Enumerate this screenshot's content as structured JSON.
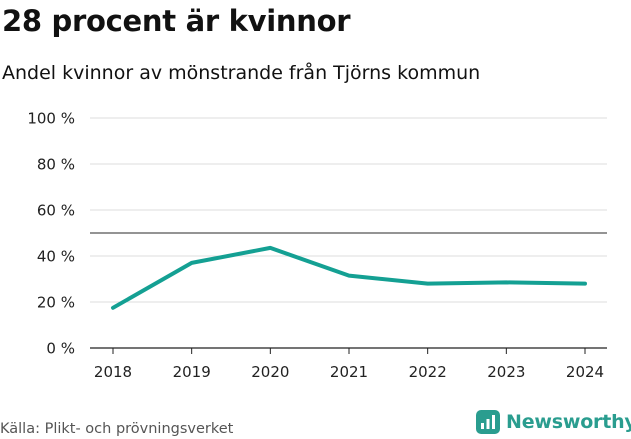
{
  "header": {
    "title": "28 procent är kvinnor",
    "subtitle": "Andel kvinnor av mönstrande från Tjörns kommun"
  },
  "footer": {
    "source": "Källa: Plikt- och prövningsverket",
    "brand": "Newsworthy"
  },
  "colors": {
    "line": "#14a093",
    "grid": "#dddddd",
    "reference": "#555555",
    "axis": "#222222",
    "brand": "#2a9d8f",
    "source_text": "#555555"
  },
  "chart_data": {
    "type": "line",
    "title": "28 procent är kvinnor",
    "subtitle": "Andel kvinnor av mönstrande från Tjörns kommun",
    "xlabel": "",
    "ylabel": "",
    "categories": [
      "2018",
      "2019",
      "2020",
      "2021",
      "2022",
      "2023",
      "2024"
    ],
    "series": [
      {
        "name": "Andel kvinnor",
        "values": [
          17.5,
          37,
          43.5,
          31.5,
          28,
          28.5,
          28
        ]
      }
    ],
    "reference_line": 50,
    "ylim": [
      0,
      100
    ],
    "yticks": [
      0,
      20,
      40,
      60,
      80,
      100
    ],
    "ytick_labels": [
      "0 %",
      "20 %",
      "40 %",
      "60 %",
      "80 %",
      "100 %"
    ],
    "grid": true,
    "legend": "none"
  }
}
